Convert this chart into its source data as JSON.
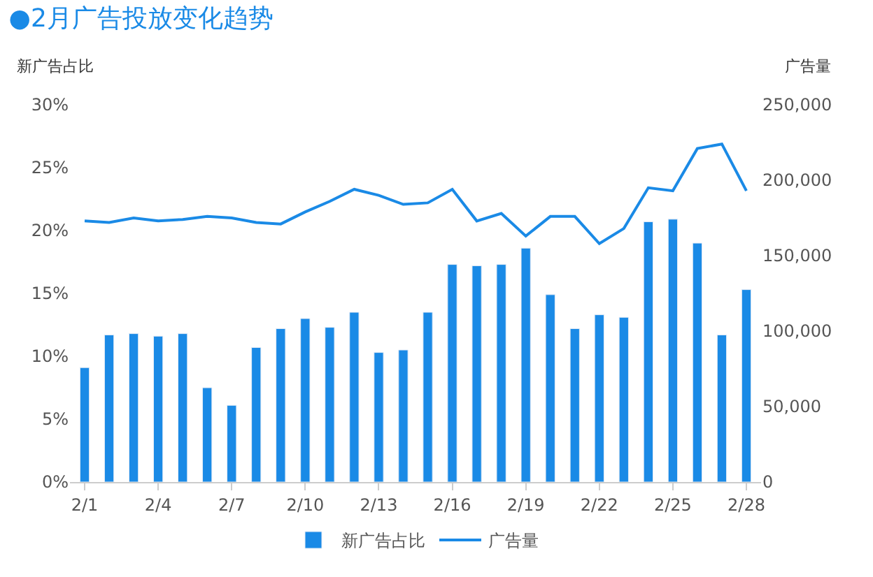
{
  "chart_data": {
    "type": "bar",
    "title": "●2月广告投放变化趋势",
    "ylabel": "新广告占比",
    "y2label": "广告量",
    "categories": [
      "2/1",
      null,
      null,
      "2/4",
      null,
      null,
      "2/7",
      null,
      null,
      "2/10",
      null,
      null,
      "2/13",
      null,
      null,
      "2/16",
      null,
      null,
      "2/19",
      null,
      null,
      "2/22",
      null,
      null,
      "2/25",
      null,
      null,
      "2/28"
    ],
    "series": [
      {
        "name": "新广告占比",
        "color": "#1a8ae6",
        "values": [
          9.1,
          11.7,
          11.8,
          11.6,
          11.8,
          7.5,
          6.1,
          10.7,
          12.2,
          13.0,
          12.3,
          13.5,
          10.3,
          10.5,
          13.5,
          17.3,
          17.2,
          17.3,
          18.6,
          14.9,
          12.2,
          13.3,
          13.1,
          20.7,
          20.9,
          19.0,
          11.7,
          15.3
        ]
      },
      {
        "name": "广告量",
        "type": "line",
        "axis": "y2",
        "color": "#1a8ae6",
        "values": [
          173000,
          172000,
          175000,
          173000,
          174000,
          176000,
          175000,
          172000,
          171000,
          179000,
          186000,
          194000,
          190000,
          184000,
          185000,
          194000,
          173000,
          178000,
          163000,
          176000,
          176000,
          158000,
          168000,
          195000,
          193000,
          221000,
          224000,
          193000
        ]
      }
    ],
    "ylim": [
      0,
      30
    ],
    "yticks": [
      {
        "value": 0,
        "label": "0%"
      },
      {
        "value": 5,
        "label": "5%"
      },
      {
        "value": 10,
        "label": "10%"
      },
      {
        "value": 15,
        "label": "15%"
      },
      {
        "value": 20,
        "label": "20%"
      },
      {
        "value": 25,
        "label": "25%"
      },
      {
        "value": 30,
        "label": "30%"
      }
    ],
    "y2lim": [
      0,
      250000
    ],
    "y2ticks": [
      {
        "value": 0,
        "label": "0"
      },
      {
        "value": 50000,
        "label": "50,000"
      },
      {
        "value": 100000,
        "label": "100,000"
      },
      {
        "value": 150000,
        "label": "150,000"
      },
      {
        "value": 200000,
        "label": "200,000"
      },
      {
        "value": 250000,
        "label": "250,000"
      }
    ],
    "legend": "bottom",
    "marker": "none"
  }
}
